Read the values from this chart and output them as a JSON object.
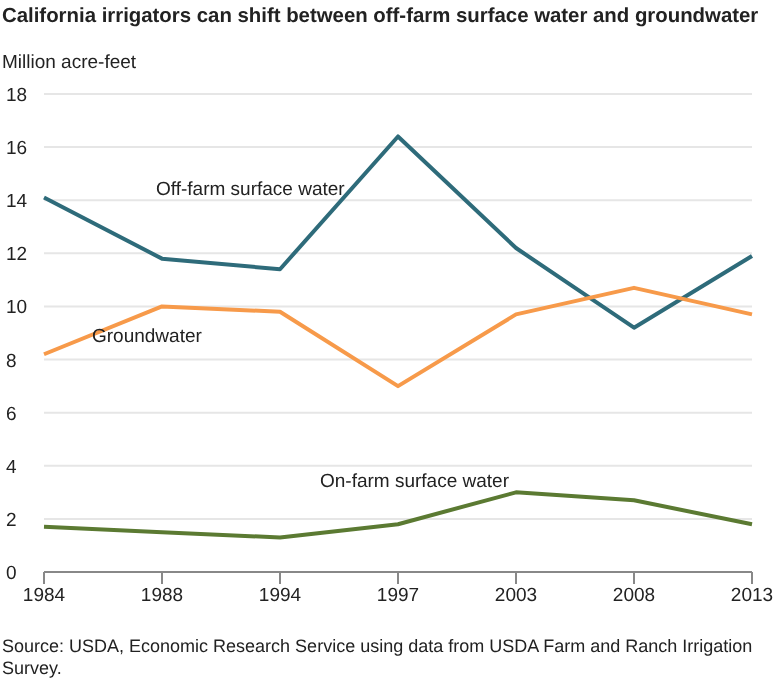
{
  "chart_data": {
    "type": "line",
    "title": "California irrigators can shift between off-farm surface water and groundwater",
    "ylabel": "Million acre-feet",
    "categories": [
      "1984",
      "1988",
      "1994",
      "1997",
      "2003",
      "2008",
      "2013"
    ],
    "series": [
      {
        "name": "Off-farm surface water",
        "color": "#2e6b7a",
        "values": [
          14.1,
          11.8,
          11.4,
          16.4,
          12.2,
          9.2,
          11.9
        ]
      },
      {
        "name": "Groundwater",
        "color": "#f79a4a",
        "values": [
          8.2,
          10.0,
          9.8,
          7.0,
          9.7,
          10.7,
          9.7
        ]
      },
      {
        "name": "On-farm surface water",
        "color": "#5b7a32",
        "values": [
          1.7,
          1.5,
          1.3,
          1.8,
          3.0,
          2.7,
          1.8
        ]
      }
    ],
    "ylim": [
      0,
      18
    ],
    "yticks": [
      0,
      2,
      4,
      6,
      8,
      10,
      12,
      14,
      16,
      18
    ],
    "grid": "y",
    "legend": false,
    "marker": "none",
    "line_style": "solid",
    "annotations": [
      "Source: USDA, Economic Research Service using data from USDA Farm and Ranch Irrigation Survey."
    ]
  }
}
